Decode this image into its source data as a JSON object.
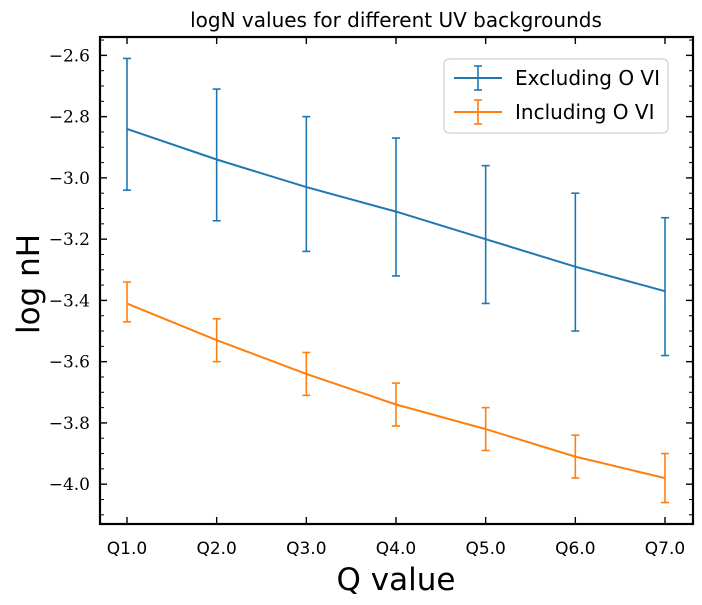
{
  "chart_data": {
    "type": "line",
    "title": "logN values for different UV backgrounds",
    "xlabel": "Q value",
    "ylabel": "log nH",
    "categories": [
      "Q1.0",
      "Q2.0",
      "Q3.0",
      "Q4.0",
      "Q5.0",
      "Q6.0",
      "Q7.0"
    ],
    "ylim": [
      -4.13,
      -2.54
    ],
    "yticks": [
      -2.6,
      -2.8,
      -3.0,
      -3.2,
      -3.4,
      -3.6,
      -3.8,
      -4.0
    ],
    "ytick_labels": [
      "−2.6",
      "−2.8",
      "−3.0",
      "−3.2",
      "−3.4",
      "−3.6",
      "−3.8",
      "−4.0"
    ],
    "grid": false,
    "legend_position": "top-right",
    "series": [
      {
        "name": "Excluding O VI",
        "color": "#1f77b4",
        "values": [
          -2.84,
          -2.94,
          -3.03,
          -3.11,
          -3.2,
          -3.29,
          -3.37
        ],
        "lower": [
          -3.04,
          -3.14,
          -3.24,
          -3.32,
          -3.41,
          -3.5,
          -3.58
        ],
        "upper": [
          -2.61,
          -2.71,
          -2.8,
          -2.87,
          -2.96,
          -3.05,
          -3.13
        ]
      },
      {
        "name": "Including O VI",
        "color": "#ff7f0e",
        "values": [
          -3.41,
          -3.53,
          -3.64,
          -3.74,
          -3.82,
          -3.91,
          -3.98
        ],
        "lower": [
          -3.47,
          -3.6,
          -3.71,
          -3.81,
          -3.89,
          -3.98,
          -4.06
        ],
        "upper": [
          -3.34,
          -3.46,
          -3.57,
          -3.67,
          -3.75,
          -3.84,
          -3.9
        ]
      }
    ]
  }
}
